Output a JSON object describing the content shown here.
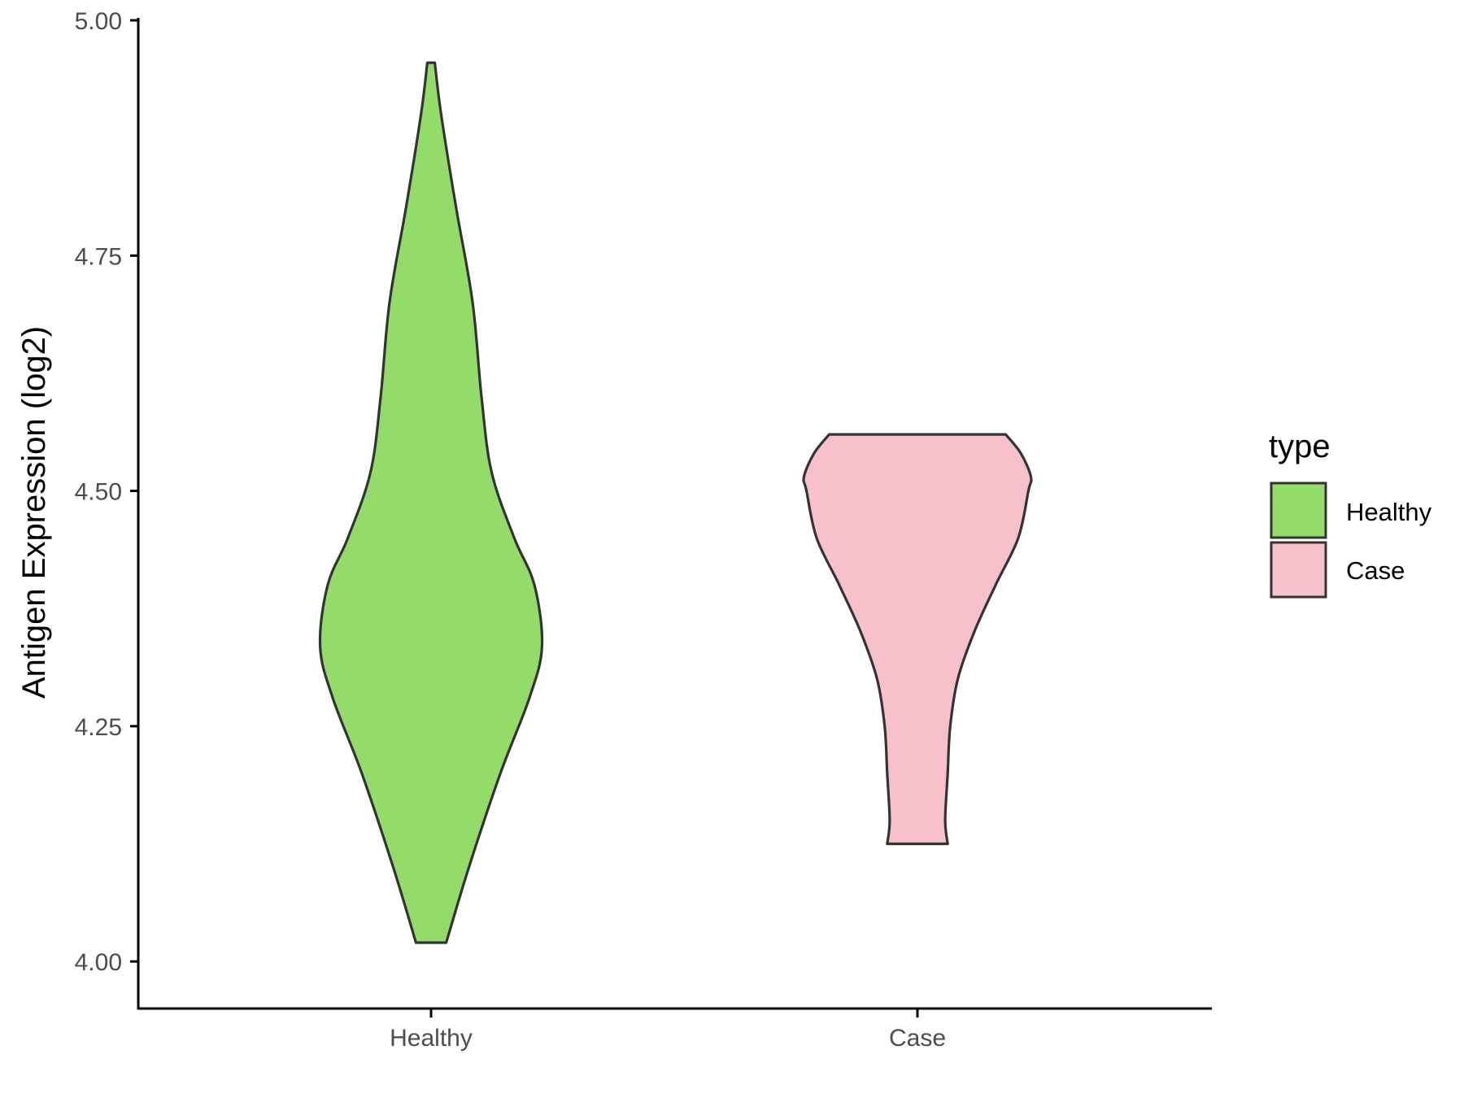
{
  "chart_data": {
    "type": "violin",
    "title": "",
    "xlabel": "",
    "ylabel": "Antigen Expression (log2)",
    "ylim": [
      3.95,
      5.0
    ],
    "yticks": [
      "4.00",
      "4.25",
      "4.50",
      "4.75",
      "5.00"
    ],
    "ytick_values": [
      4.0,
      4.25,
      4.5,
      4.75,
      5.0
    ],
    "categories": [
      "Healthy",
      "Case"
    ],
    "grid": false,
    "legend": {
      "title": "type",
      "position": "right",
      "entries": [
        {
          "label": "Healthy",
          "color": "#93dc6a"
        },
        {
          "label": "Case",
          "color": "#f7c0cb"
        }
      ]
    },
    "series": [
      {
        "category": "Healthy",
        "fill": "#93dc6a",
        "min": 4.02,
        "max": 4.955,
        "density_profile": [
          [
            4.02,
            0.12
          ],
          [
            4.1,
            0.3
          ],
          [
            4.2,
            0.55
          ],
          [
            4.28,
            0.78
          ],
          [
            4.335,
            0.88
          ],
          [
            4.4,
            0.82
          ],
          [
            4.45,
            0.66
          ],
          [
            4.52,
            0.48
          ],
          [
            4.6,
            0.4
          ],
          [
            4.7,
            0.33
          ],
          [
            4.8,
            0.2
          ],
          [
            4.9,
            0.08
          ],
          [
            4.955,
            0.03
          ]
        ]
      },
      {
        "category": "Case",
        "fill": "#f7c0cb",
        "min": 4.125,
        "max": 4.56,
        "density_profile": [
          [
            4.125,
            0.24
          ],
          [
            4.15,
            0.22
          ],
          [
            4.2,
            0.24
          ],
          [
            4.25,
            0.26
          ],
          [
            4.3,
            0.32
          ],
          [
            4.35,
            0.45
          ],
          [
            4.4,
            0.62
          ],
          [
            4.45,
            0.8
          ],
          [
            4.5,
            0.88
          ],
          [
            4.515,
            0.9
          ],
          [
            4.54,
            0.82
          ],
          [
            4.56,
            0.7
          ]
        ]
      }
    ]
  }
}
